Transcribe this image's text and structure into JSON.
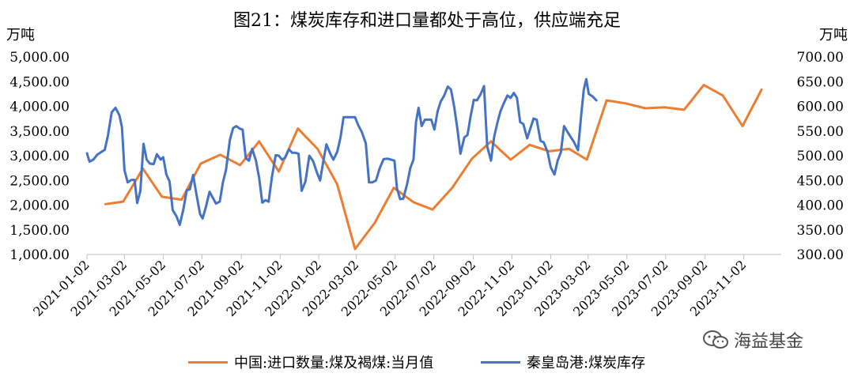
{
  "chart_data": {
    "type": "line",
    "title": "图21：煤炭库存和进口量都处于高位，供应端充足",
    "y_left_unit": "万吨",
    "y_right_unit": "万吨",
    "y_left_lim": [
      1000,
      5000
    ],
    "y_right_lim": [
      300,
      700
    ],
    "y_left_ticks": [
      "1,000.00",
      "1,500.00",
      "2,000.00",
      "2,500.00",
      "3,000.00",
      "3,500.00",
      "4,000.00",
      "4,500.00",
      "5,000.00"
    ],
    "y_right_ticks": [
      "300.00",
      "350.00",
      "400.00",
      "450.00",
      "500.00",
      "550.00",
      "600.00",
      "650.00",
      "700.00"
    ],
    "x_ticks": [
      "2021-01-02",
      "2021-03-02",
      "2021-05-02",
      "2021-07-02",
      "2021-09-02",
      "2021-11-02",
      "2022-01-02",
      "2022-03-02",
      "2022-05-02",
      "2022-07-02",
      "2022-09-02",
      "2022-11-02",
      "2023-01-02",
      "2023-03-02",
      "2023-05-02",
      "2023-07-02",
      "2023-09-02",
      "2023-11-02"
    ],
    "x_range": [
      "2021-01-02",
      "2023-12-31"
    ],
    "series": [
      {
        "name": "中国:进口数量:煤及褐煤:当月值",
        "axis": "left",
        "color": "#ED7D31",
        "points": [
          [
            "2021-01-31",
            2020
          ],
          [
            "2021-02-28",
            2070
          ],
          [
            "2021-03-31",
            2740
          ],
          [
            "2021-04-30",
            2170
          ],
          [
            "2021-05-31",
            2110
          ],
          [
            "2021-06-30",
            2840
          ],
          [
            "2021-07-31",
            3020
          ],
          [
            "2021-08-31",
            2810
          ],
          [
            "2021-09-30",
            3290
          ],
          [
            "2021-10-31",
            2680
          ],
          [
            "2021-11-30",
            3550
          ],
          [
            "2021-12-31",
            3140
          ],
          [
            "2022-01-31",
            2420
          ],
          [
            "2022-02-28",
            1110
          ],
          [
            "2022-03-31",
            1640
          ],
          [
            "2022-04-30",
            2350
          ],
          [
            "2022-05-31",
            2060
          ],
          [
            "2022-06-30",
            1910
          ],
          [
            "2022-07-31",
            2350
          ],
          [
            "2022-08-31",
            2940
          ],
          [
            "2022-09-30",
            3290
          ],
          [
            "2022-10-31",
            2920
          ],
          [
            "2022-11-30",
            3220
          ],
          [
            "2022-12-31",
            3090
          ],
          [
            "2023-01-31",
            3140
          ],
          [
            "2023-02-28",
            2920
          ],
          [
            "2023-03-31",
            4120
          ],
          [
            "2023-04-30",
            4060
          ],
          [
            "2023-05-31",
            3960
          ],
          [
            "2023-06-30",
            3980
          ],
          [
            "2023-07-31",
            3930
          ],
          [
            "2023-08-31",
            4430
          ],
          [
            "2023-09-30",
            4220
          ],
          [
            "2023-10-31",
            3600
          ],
          [
            "2023-11-30",
            4340
          ]
        ]
      },
      {
        "name": "秦皇岛港:煤炭库存",
        "axis": "right",
        "color": "#4472C4",
        "points": [
          [
            "2021-01-02",
            505
          ],
          [
            "2021-01-06",
            488
          ],
          [
            "2021-01-12",
            492
          ],
          [
            "2021-01-18",
            502
          ],
          [
            "2021-01-24",
            507
          ],
          [
            "2021-01-30",
            512
          ],
          [
            "2021-02-04",
            541
          ],
          [
            "2021-02-10",
            588
          ],
          [
            "2021-02-16",
            597
          ],
          [
            "2021-02-22",
            582
          ],
          [
            "2021-02-26",
            558
          ],
          [
            "2021-03-02",
            471
          ],
          [
            "2021-03-07",
            446
          ],
          [
            "2021-03-13",
            451
          ],
          [
            "2021-03-18",
            451
          ],
          [
            "2021-03-22",
            404
          ],
          [
            "2021-03-27",
            429
          ],
          [
            "2021-04-01",
            524
          ],
          [
            "2021-04-06",
            492
          ],
          [
            "2021-04-11",
            484
          ],
          [
            "2021-04-17",
            483
          ],
          [
            "2021-04-22",
            503
          ],
          [
            "2021-04-28",
            492
          ],
          [
            "2021-05-02",
            497
          ],
          [
            "2021-05-07",
            462
          ],
          [
            "2021-05-12",
            448
          ],
          [
            "2021-05-17",
            390
          ],
          [
            "2021-05-23",
            377
          ],
          [
            "2021-05-28",
            360
          ],
          [
            "2021-06-03",
            393
          ],
          [
            "2021-06-08",
            430
          ],
          [
            "2021-06-13",
            432
          ],
          [
            "2021-06-18",
            461
          ],
          [
            "2021-06-23",
            424
          ],
          [
            "2021-06-29",
            382
          ],
          [
            "2021-07-03",
            373
          ],
          [
            "2021-07-08",
            395
          ],
          [
            "2021-07-14",
            427
          ],
          [
            "2021-07-19",
            415
          ],
          [
            "2021-07-24",
            403
          ],
          [
            "2021-07-30",
            407
          ],
          [
            "2021-08-04",
            446
          ],
          [
            "2021-08-09",
            472
          ],
          [
            "2021-08-15",
            532
          ],
          [
            "2021-08-20",
            556
          ],
          [
            "2021-08-25",
            560
          ],
          [
            "2021-08-30",
            555
          ],
          [
            "2021-09-04",
            553
          ],
          [
            "2021-09-09",
            495
          ],
          [
            "2021-09-14",
            490
          ],
          [
            "2021-09-19",
            514
          ],
          [
            "2021-09-25",
            490
          ],
          [
            "2021-09-30",
            455
          ],
          [
            "2021-10-05",
            405
          ],
          [
            "2021-10-10",
            410
          ],
          [
            "2021-10-15",
            407
          ],
          [
            "2021-10-20",
            456
          ],
          [
            "2021-10-26",
            501
          ],
          [
            "2021-10-31",
            500
          ],
          [
            "2021-11-05",
            492
          ],
          [
            "2021-11-10",
            496
          ],
          [
            "2021-11-16",
            513
          ],
          [
            "2021-11-21",
            506
          ],
          [
            "2021-11-26",
            506
          ],
          [
            "2021-12-01",
            504
          ],
          [
            "2021-12-06",
            429
          ],
          [
            "2021-12-12",
            448
          ],
          [
            "2021-12-18",
            500
          ],
          [
            "2021-12-24",
            489
          ],
          [
            "2021-12-30",
            466
          ],
          [
            "2022-01-04",
            450
          ],
          [
            "2022-01-09",
            488
          ],
          [
            "2022-01-14",
            523
          ],
          [
            "2022-01-20",
            504
          ],
          [
            "2022-01-25",
            492
          ],
          [
            "2022-01-31",
            508
          ],
          [
            "2022-02-05",
            536
          ],
          [
            "2022-02-10",
            578
          ],
          [
            "2022-02-16",
            578
          ],
          [
            "2022-02-22",
            578
          ],
          [
            "2022-02-28",
            578
          ],
          [
            "2022-03-05",
            562
          ],
          [
            "2022-03-11",
            547
          ],
          [
            "2022-03-17",
            525
          ],
          [
            "2022-03-22",
            446
          ],
          [
            "2022-03-27",
            446
          ],
          [
            "2022-04-02",
            450
          ],
          [
            "2022-04-08",
            475
          ],
          [
            "2022-04-14",
            493
          ],
          [
            "2022-04-20",
            494
          ],
          [
            "2022-04-26",
            492
          ],
          [
            "2022-05-01",
            490
          ],
          [
            "2022-05-05",
            434
          ],
          [
            "2022-05-10",
            412
          ],
          [
            "2022-05-15",
            413
          ],
          [
            "2022-05-21",
            443
          ],
          [
            "2022-05-26",
            475
          ],
          [
            "2022-05-31",
            492
          ],
          [
            "2022-06-04",
            568
          ],
          [
            "2022-06-08",
            597
          ],
          [
            "2022-06-13",
            560
          ],
          [
            "2022-06-18",
            573
          ],
          [
            "2022-06-23",
            573
          ],
          [
            "2022-06-28",
            573
          ],
          [
            "2022-07-03",
            553
          ],
          [
            "2022-07-08",
            590
          ],
          [
            "2022-07-13",
            610
          ],
          [
            "2022-07-18",
            621
          ],
          [
            "2022-07-24",
            640
          ],
          [
            "2022-07-29",
            634
          ],
          [
            "2022-08-03",
            600
          ],
          [
            "2022-08-08",
            556
          ],
          [
            "2022-08-13",
            504
          ],
          [
            "2022-08-19",
            537
          ],
          [
            "2022-08-24",
            542
          ],
          [
            "2022-08-29",
            580
          ],
          [
            "2022-09-03",
            613
          ],
          [
            "2022-09-08",
            612
          ],
          [
            "2022-09-14",
            625
          ],
          [
            "2022-09-19",
            641
          ],
          [
            "2022-09-24",
            519
          ],
          [
            "2022-09-30",
            490
          ],
          [
            "2022-10-05",
            538
          ],
          [
            "2022-10-10",
            566
          ],
          [
            "2022-10-15",
            590
          ],
          [
            "2022-10-20",
            606
          ],
          [
            "2022-10-26",
            622
          ],
          [
            "2022-10-31",
            617
          ],
          [
            "2022-11-05",
            627
          ],
          [
            "2022-11-10",
            617
          ],
          [
            "2022-11-15",
            568
          ],
          [
            "2022-11-20",
            564
          ],
          [
            "2022-11-26",
            535
          ],
          [
            "2022-12-01",
            555
          ],
          [
            "2022-12-06",
            575
          ],
          [
            "2022-12-11",
            573
          ],
          [
            "2022-12-17",
            530
          ],
          [
            "2022-12-22",
            527
          ],
          [
            "2022-12-28",
            508
          ],
          [
            "2023-01-02",
            477
          ],
          [
            "2023-01-08",
            462
          ],
          [
            "2023-01-13",
            490
          ],
          [
            "2023-01-18",
            507
          ],
          [
            "2023-01-23",
            560
          ],
          [
            "2023-01-29",
            547
          ],
          [
            "2023-02-03",
            537
          ],
          [
            "2023-02-08",
            527
          ],
          [
            "2023-02-14",
            511
          ],
          [
            "2023-02-19",
            582
          ],
          [
            "2023-02-23",
            633
          ],
          [
            "2023-02-27",
            655
          ],
          [
            "2023-03-03",
            625
          ],
          [
            "2023-03-09",
            620
          ],
          [
            "2023-03-15",
            612
          ]
        ]
      }
    ],
    "legend_position": "bottom",
    "grid": false
  },
  "watermark": "海益基金"
}
